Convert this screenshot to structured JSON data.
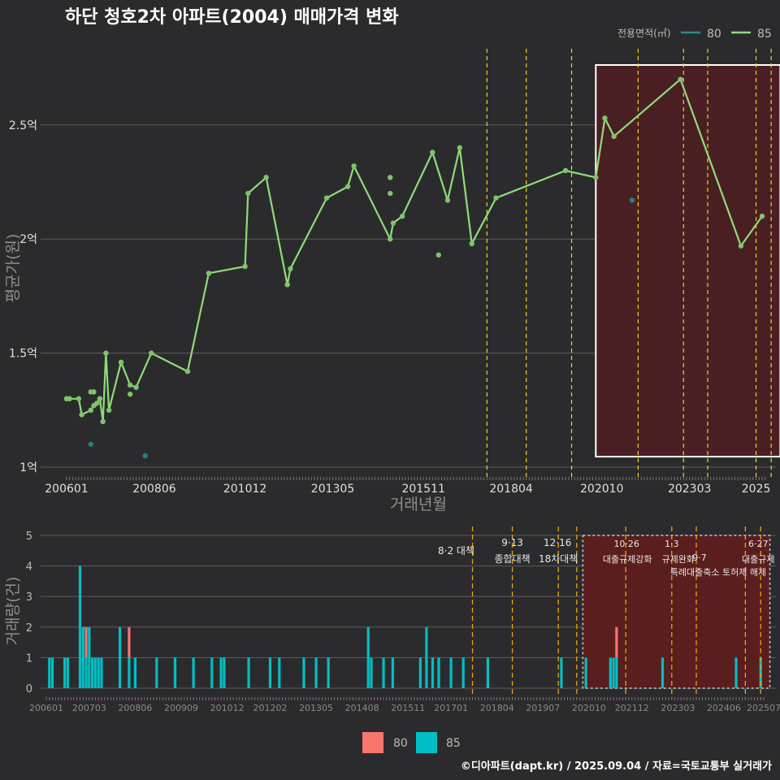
{
  "title": "하단 청호2차 아파트(2004) 매매가격 변화",
  "footer": "©디아파트(dapt.kr) / 2025.09.04 / 자료=국토교통부 실거래가",
  "colors": {
    "background": "#2b2b2d",
    "s80_line": "#2a8a8a",
    "s85_line": "#8fdc7a",
    "bar80": "#f8766d",
    "bar85": "#00bfc4",
    "highlight": "#4a1f24",
    "policy_line": "#f2d31b"
  },
  "chart_data": [
    {
      "type": "line",
      "xlabel": "거래년월",
      "ylabel": "평균가(원)",
      "ylim": [
        1.0,
        2.75
      ],
      "yticks": [
        {
          "v": 1.0,
          "label": "1억"
        },
        {
          "v": 1.5,
          "label": "1.5억"
        },
        {
          "v": 2.0,
          "label": "2억"
        },
        {
          "v": 2.5,
          "label": "2.5억"
        }
      ],
      "xticks": [
        "200601",
        "200806",
        "201012",
        "201305",
        "201511",
        "201804",
        "202010",
        "202303",
        "2025"
      ],
      "legend": {
        "title": "전용면적(㎡)",
        "entries": [
          "80",
          "85"
        ],
        "placement": "top-right"
      },
      "policy_dates": [
        "2017-08",
        "2018-09",
        "2019-12",
        "2021-10",
        "2023-01",
        "2023-09",
        "2025-01",
        "2025-06"
      ],
      "highlight_range": [
        "2020-08",
        "2025-09"
      ],
      "series": [
        {
          "name": "85",
          "type": "line",
          "x": [
            "2006-01",
            "2006-02",
            "2006-05",
            "2006-06",
            "2006-09",
            "2006-10",
            "2006-11",
            "2006-12",
            "2007-01",
            "2007-02",
            "2007-03",
            "2007-07",
            "2007-10",
            "2007-12",
            "2008-05",
            "2009-05",
            "2009-12",
            "2010-12",
            "2011-01",
            "2011-07",
            "2012-02",
            "2012-03",
            "2013-03",
            "2013-10",
            "2013-12",
            "2014-12",
            "2015-01",
            "2015-04",
            "2016-02",
            "2016-07",
            "2016-11",
            "2017-03",
            "2017-11",
            "2019-10",
            "2020-08",
            "2020-11",
            "2021-02",
            "2022-12",
            "2024-08",
            "2025-03"
          ],
          "y": [
            1.3,
            1.3,
            1.3,
            1.23,
            1.25,
            1.27,
            1.28,
            1.3,
            1.2,
            1.5,
            1.25,
            1.46,
            1.36,
            1.35,
            1.5,
            1.42,
            1.85,
            1.88,
            2.2,
            2.27,
            1.8,
            1.87,
            2.18,
            2.23,
            2.32,
            2.0,
            2.07,
            2.1,
            2.38,
            2.17,
            2.4,
            1.98,
            2.18,
            2.3,
            2.27,
            2.53,
            2.45,
            2.7,
            1.97,
            2.1
          ]
        },
        {
          "name": "85",
          "type": "points",
          "x": [
            "2006-01",
            "2006-09",
            "2006-10",
            "2006-12",
            "2007-10",
            "2014-12",
            "2014-12",
            "2016-04"
          ],
          "y": [
            1.3,
            1.33,
            1.33,
            1.3,
            1.32,
            2.2,
            2.27,
            1.93
          ]
        },
        {
          "name": "80",
          "type": "points",
          "x": [
            "2006-09",
            "2008-03",
            "2021-08"
          ],
          "y": [
            1.1,
            1.05,
            2.17
          ]
        }
      ]
    },
    {
      "type": "bar",
      "xlabel": "",
      "ylabel": "거래량(건)",
      "ylim": [
        0,
        5
      ],
      "yticks": [
        0,
        1,
        2,
        3,
        4,
        5
      ],
      "xticks": [
        "200601",
        "200703",
        "200806",
        "200909",
        "201012",
        "201202",
        "201305",
        "201408",
        "201511",
        "201701",
        "201804",
        "201907",
        "202010",
        "202112",
        "202303",
        "202406",
        "202507"
      ],
      "legend": {
        "entries": [
          "80",
          "85"
        ],
        "placement": "bottom"
      },
      "policies": [
        {
          "date": "2017-08",
          "date_label": "8·2",
          "label": "대책"
        },
        {
          "date": "2018-09",
          "date_label": "9·13",
          "label": "종합대책"
        },
        {
          "date": "2019-12",
          "date_label": "12·16",
          "label": "18차대책"
        },
        {
          "date": "2020-06",
          "date_label": "",
          "label": ""
        },
        {
          "date": "2021-10",
          "date_label": "10·26",
          "label": "대출규제강화"
        },
        {
          "date": "2023-01",
          "date_label": "1·3",
          "label": "규제완화"
        },
        {
          "date": "2023-09",
          "date_label": "9·7",
          "label": "특례대출축소 토허제 해제"
        },
        {
          "date": "2025-01",
          "date_label": "",
          "label": ""
        },
        {
          "date": "2025-06",
          "date_label": "6·27",
          "label": "대출규제"
        }
      ],
      "highlight_range": [
        "2020-08",
        "2025-09"
      ],
      "series": [
        {
          "name": "80",
          "x": [
            "2007-02",
            "2008-04",
            "2021-07"
          ],
          "values": [
            1,
            1,
            1
          ]
        },
        {
          "name": "85",
          "x": [
            "2006-02",
            "2006-03",
            "2006-07",
            "2006-08",
            "2006-12",
            "2007-01",
            "2007-02",
            "2007-03",
            "2007-04",
            "2007-05",
            "2007-06",
            "2007-07",
            "2008-01",
            "2008-04",
            "2008-06",
            "2009-01",
            "2009-07",
            "2010-01",
            "2010-07",
            "2010-10",
            "2010-11",
            "2011-07",
            "2012-02",
            "2012-05",
            "2013-01",
            "2013-05",
            "2013-09",
            "2014-10",
            "2014-11",
            "2015-03",
            "2015-06",
            "2016-03",
            "2016-05",
            "2016-07",
            "2016-09",
            "2017-01",
            "2017-05",
            "2018-01",
            "2020-01",
            "2020-09",
            "2021-05",
            "2021-06",
            "2021-07",
            "2022-10",
            "2024-10",
            "2025-06"
          ],
          "values": [
            1,
            1,
            1,
            1,
            4,
            2,
            1,
            2,
            1,
            1,
            1,
            1,
            2,
            1,
            1,
            1,
            1,
            1,
            1,
            1,
            1,
            1,
            1,
            1,
            1,
            1,
            1,
            2,
            1,
            1,
            1,
            1,
            2,
            1,
            1,
            1,
            1,
            1,
            1,
            1,
            1,
            1,
            1,
            1,
            1,
            1
          ]
        }
      ]
    }
  ]
}
